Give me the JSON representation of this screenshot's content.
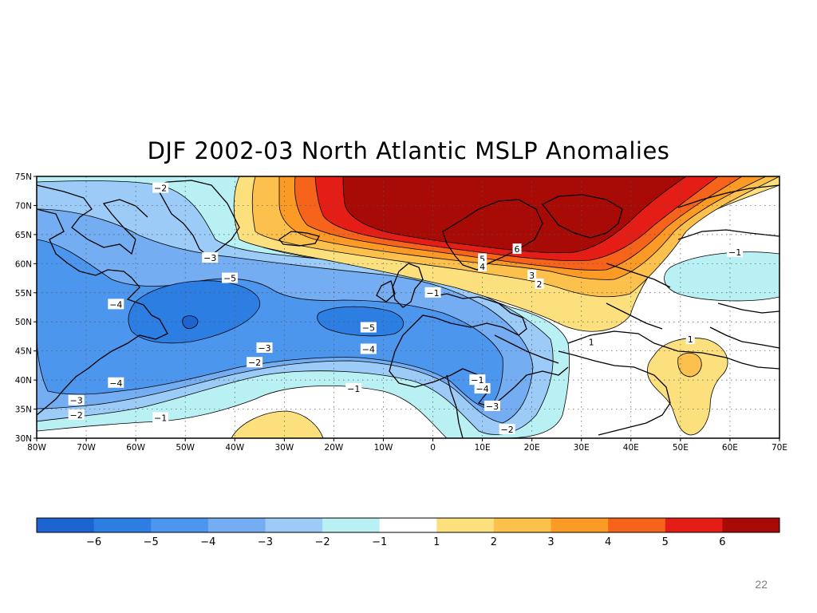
{
  "title": "DJF 2002-03 North Atlantic MSLP Anomalies",
  "page_number": "22",
  "map": {
    "lat_labels": [
      "75N",
      "70N",
      "65N",
      "60N",
      "55N",
      "50N",
      "45N",
      "40N",
      "35N",
      "30N"
    ],
    "lon_labels": [
      "80W",
      "70W",
      "60W",
      "50W",
      "40W",
      "30W",
      "20W",
      "10W",
      "0",
      "10E",
      "20E",
      "30E",
      "40E",
      "50E",
      "60E",
      "70E"
    ],
    "lat_range": [
      30,
      75
    ],
    "lon_range": [
      -80,
      70
    ],
    "contour_labels": [
      {
        "text": "−2",
        "lon": -55,
        "lat": 73
      },
      {
        "text": "−3",
        "lon": -45,
        "lat": 61
      },
      {
        "text": "−5",
        "lon": -41,
        "lat": 57.5
      },
      {
        "text": "−4",
        "lon": -64,
        "lat": 53
      },
      {
        "text": "−3",
        "lon": -34,
        "lat": 45.5
      },
      {
        "text": "−2",
        "lon": -36,
        "lat": 43
      },
      {
        "text": "−4",
        "lon": -64,
        "lat": 39.5
      },
      {
        "text": "−3",
        "lon": -72,
        "lat": 36.5
      },
      {
        "text": "−2",
        "lon": -72,
        "lat": 34
      },
      {
        "text": "−1",
        "lon": -55,
        "lat": 33.5
      },
      {
        "text": "−1",
        "lon": -16,
        "lat": 38.5
      },
      {
        "text": "−5",
        "lon": -13,
        "lat": 49
      },
      {
        "text": "−4",
        "lon": -13,
        "lat": 45.3
      },
      {
        "text": "−1",
        "lon": 0,
        "lat": 55
      },
      {
        "text": "−1",
        "lon": 9,
        "lat": 40
      },
      {
        "text": "−4",
        "lon": 10,
        "lat": 38.5
      },
      {
        "text": "−3",
        "lon": 12,
        "lat": 35.5
      },
      {
        "text": "−2",
        "lon": 15,
        "lat": 31.5
      },
      {
        "text": "6",
        "lon": 17,
        "lat": 62.5
      },
      {
        "text": "5",
        "lon": 10,
        "lat": 60.8
      },
      {
        "text": "4",
        "lon": 10,
        "lat": 59.5
      },
      {
        "text": "3",
        "lon": 20,
        "lat": 58
      },
      {
        "text": "2",
        "lon": 21.5,
        "lat": 56.5
      },
      {
        "text": "1",
        "lon": 32,
        "lat": 46.5
      },
      {
        "text": "1",
        "lon": 52,
        "lat": 47
      },
      {
        "text": "−1",
        "lon": 61,
        "lat": 62
      }
    ]
  },
  "colorbar": {
    "tick_labels": [
      "−6",
      "−5",
      "−4",
      "−3",
      "−2",
      "−1",
      "1",
      "2",
      "3",
      "4",
      "5",
      "6"
    ],
    "colors": [
      "#1b64d1",
      "#2d7ee3",
      "#4c96ee",
      "#74adf1",
      "#9ccbf7",
      "#b8f0f3",
      "#ffffff",
      "#fde07e",
      "#fcc04c",
      "#fb9a25",
      "#f5641a",
      "#e41e16",
      "#a80a06"
    ]
  }
}
